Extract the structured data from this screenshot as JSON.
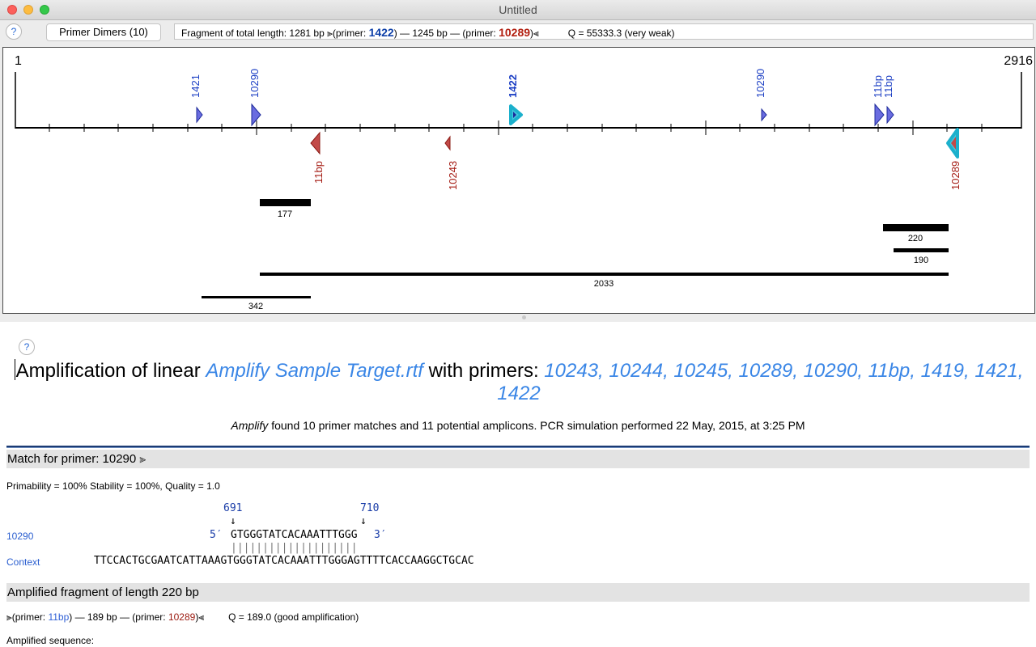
{
  "window": {
    "title": "Untitled"
  },
  "toolbar": {
    "help_label": "?",
    "dimers_label": "Primer Dimers (10)",
    "fragment_prefix": "Fragment of total length: 1281 bp   ⫸(primer: ",
    "fragment_primer1": "1422",
    "fragment_mid": ") — 1245 bp — (primer: ",
    "fragment_primer2": "10289",
    "fragment_suffix": ")⫷",
    "fragment_q": "Q = 55333.3  (very weak)"
  },
  "map": {
    "start_label": "1",
    "end_label": "2916",
    "forward_primers": [
      {
        "label": "1421",
        "color": "#1c3fc4"
      },
      {
        "label": "10290",
        "color": "#1c3fc4"
      },
      {
        "label": "1422",
        "color": "#1c3fc4",
        "highlight": true
      },
      {
        "label": "10290",
        "color": "#1c3fc4"
      },
      {
        "label": "11bp",
        "color": "#1c3fc4"
      },
      {
        "label": "11bp",
        "color": "#1c3fc4"
      }
    ],
    "reverse_primers": [
      {
        "label": "11bp",
        "color": "#a51c14"
      },
      {
        "label": "10243",
        "color": "#a51c14"
      },
      {
        "label": "10289",
        "color": "#a51c14",
        "highlight": true
      }
    ],
    "amplicons": [
      "177",
      "220",
      "190",
      "2033",
      "342"
    ]
  },
  "report": {
    "help_label": "?",
    "title_prefix": "Amplification of linear ",
    "title_target": "Amplify Sample Target.rtf",
    "title_mid": " with primers: ",
    "title_primers": "10243, 10244, 10245, 10289, 10290, 11bp, 1419, 1421, 1422",
    "summary_app": "Amplify",
    "summary_text": " found 10 primer matches and 11 potential amplicons.  PCR simulation performed 22 May, 2015, at 3:25 PM",
    "match_header": "Match for primer: 10290",
    "match_arrow": "⫸",
    "stats": "Primability = 100%    Stability = 100%,    Quality = 1.0",
    "pos_start": "691",
    "pos_end": "710",
    "arrow_down": "↓",
    "primer_row_label": "10290",
    "primer_5": "5′",
    "primer_seq": "GTGGGTATCACAAATTTGGG",
    "primer_3": "3′",
    "bars": "||||||||||||||||||||",
    "context_label": "Context",
    "context_seq": "TTCCACTGCGAATCATTAAAGTGGGTATCACAAATTTGGGAGTTTTCACCAAGGCTGCAC",
    "fragment_header": "Amplified fragment of length 220 bp",
    "ampl_prefix": "⫸(primer: ",
    "ampl_primer1": "11bp",
    "ampl_mid": ") — 189 bp — (primer: ",
    "ampl_primer2": "10289",
    "ampl_suffix": ")⫷",
    "ampl_q": "Q = 189.0  (good amplification)",
    "seq_label": "Amplified sequence:"
  }
}
